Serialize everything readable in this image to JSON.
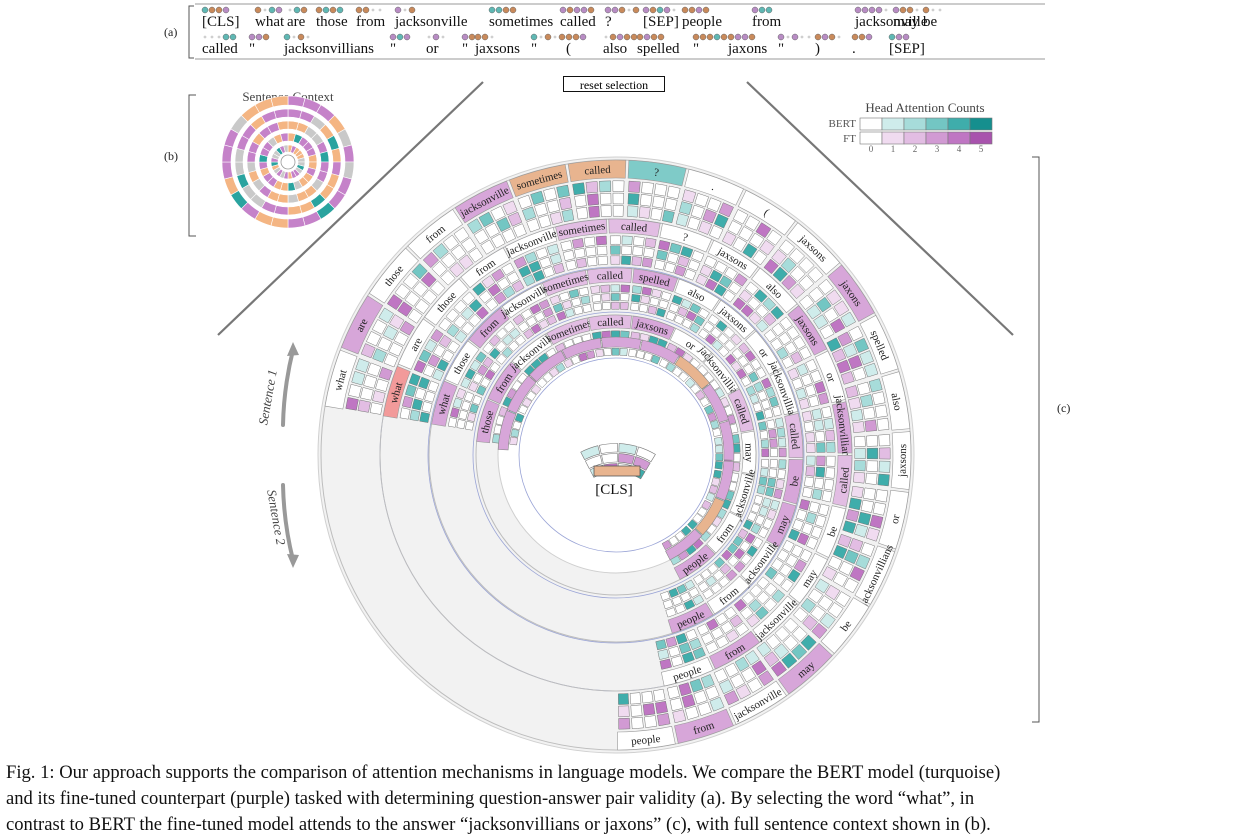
{
  "panels": {
    "a": "(a)",
    "b": "(b)",
    "c": "(c)"
  },
  "tokens_line1": [
    "[CLS]",
    "what",
    "are",
    "those",
    "from",
    "jacksonville",
    "sometimes",
    "called",
    "?",
    "[SEP]",
    "people",
    "from",
    "jacksonville",
    "may",
    "be"
  ],
  "tokens_line2": [
    "called",
    "\"",
    "jacksonvillians",
    "\"",
    "or",
    "\"",
    "jaxsons",
    "\"",
    "(",
    "also",
    "spelled",
    "\"",
    "jaxons",
    "\"",
    ")",
    ".",
    "[SEP]"
  ],
  "reset_label": "reset selection",
  "sentence_context_title": "Sentence Context",
  "legend": {
    "title": "Head Attention Counts",
    "rows": [
      {
        "label": "BERT",
        "colors": [
          "#ffffff",
          "#cfeceb",
          "#a7dcda",
          "#73c6c3",
          "#3fadab",
          "#158f8e"
        ]
      },
      {
        "label": "FT",
        "colors": [
          "#ffffff",
          "#f0dbf0",
          "#e2bde3",
          "#d19ad3",
          "#bf76c3",
          "#a853ad"
        ]
      }
    ],
    "scale": [
      "0",
      "1",
      "2",
      "3",
      "4",
      "5"
    ]
  },
  "selected_word": "what",
  "center_label": "[CLS]",
  "sentence_labels": [
    "Sentence 1",
    "Sentence 2"
  ],
  "ring_words": {
    "outer": [
      "what",
      "are",
      "those",
      "from",
      "jacksonville",
      "sometimes",
      "called",
      "?",
      ".",
      "(",
      "jaxsons",
      "jaxons",
      "spelled",
      "also",
      "jaxsons",
      "or",
      "jacksonvillians",
      "be",
      "may",
      "jacksonville",
      "from",
      "people"
    ],
    "ring2": [
      "what",
      "are",
      "those",
      "from",
      "jacksonville",
      "sometimes",
      "called",
      "?",
      "jaxsons",
      "also",
      "jaxsons",
      "or",
      "jacksonvillians",
      "called",
      "be",
      "may",
      "jacksonville",
      "from",
      "people"
    ],
    "ring3": [
      "what",
      "those",
      "from",
      "jacksonville",
      "sometimes",
      "called",
      "spelled",
      "also",
      "jaxsons",
      "or",
      "jacksonvillians",
      "called",
      "be",
      "may",
      "jacksonville",
      "from",
      "people"
    ],
    "ring4": [
      "those",
      "from",
      "jacksonville",
      "sometimes",
      "called",
      "jaxsons",
      "or",
      "jacksonvillians",
      "called",
      "may",
      "jacksonville",
      "from",
      "people"
    ],
    "inner": [
      "jacksonville",
      "from",
      "those",
      "people",
      "from",
      "sometimes",
      "called",
      "jaxsons",
      "or",
      "jacksonvillians",
      "called",
      "may"
    ]
  },
  "caption": [
    "Fig. 1: Our approach supports the comparison of attention mechanisms in language models. We compare the BERT model (turquoise)",
    "and its fine-tuned counterpart (purple) tasked with determining question-answer pair validity (a). By selecting the word “what”, in",
    "contrast to BERT the fine-tuned model attends to the answer “jacksonvillians or jaxons” (c), with full sentence context shown in (b)."
  ],
  "colors": {
    "bert": "#3fadab",
    "ft": "#bf76c3",
    "highlight": "#e8b48f",
    "selected": "#f29a9a",
    "bg_ring": "#f0f0f0"
  }
}
